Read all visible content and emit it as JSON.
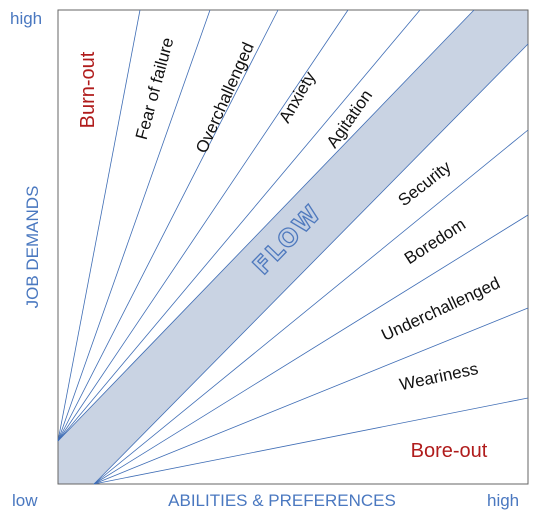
{
  "axes": {
    "y_high": "high",
    "y_label": "JOB DEMANDS",
    "x_low": "low",
    "x_label": "ABILITIES & PREFERENCES",
    "x_high": "high"
  },
  "zones": {
    "burnout": "Burn-out",
    "fear_of_failure": "Fear of failure",
    "overchallenged": "Overchallenged",
    "anxiety": "Anxiety",
    "agitation": "Agitation",
    "flow": "FLOW",
    "security": "Security",
    "boredom": "Boredom",
    "underchallenged": "Underchallenged",
    "weariness": "Weariness",
    "boreout": "Bore-out"
  },
  "colors": {
    "axis_text": "#4a78c0",
    "lines": "#3f6db5",
    "flow_band": "#c9d3e3",
    "warning_text": "#b01c1c"
  }
}
